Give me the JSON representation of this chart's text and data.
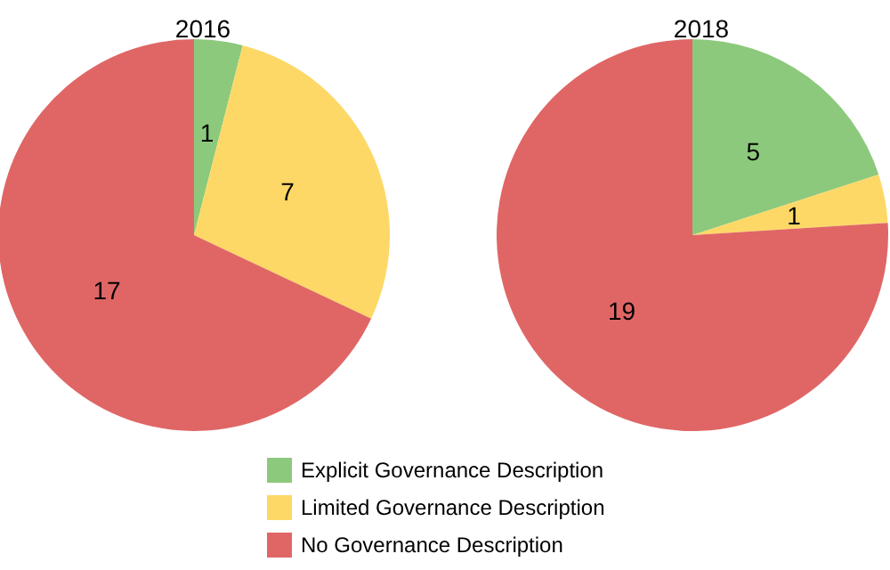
{
  "chart_data": [
    {
      "type": "pie",
      "title": "2016",
      "categories": [
        "Explicit Governance Description",
        "Limited Governance Description",
        "No Governance Description"
      ],
      "values": [
        1,
        7,
        17
      ],
      "colors": [
        "#8cc97c",
        "#fdd867",
        "#e06666"
      ],
      "data_labels": true,
      "legend": "bottom"
    },
    {
      "type": "pie",
      "title": "2018",
      "categories": [
        null,
        null,
        null
      ],
      "values": [
        5,
        1,
        19
      ],
      "colors": [
        "#8cc97c",
        "#fdd867",
        "#e06666"
      ],
      "data_labels": true
    }
  ]
}
